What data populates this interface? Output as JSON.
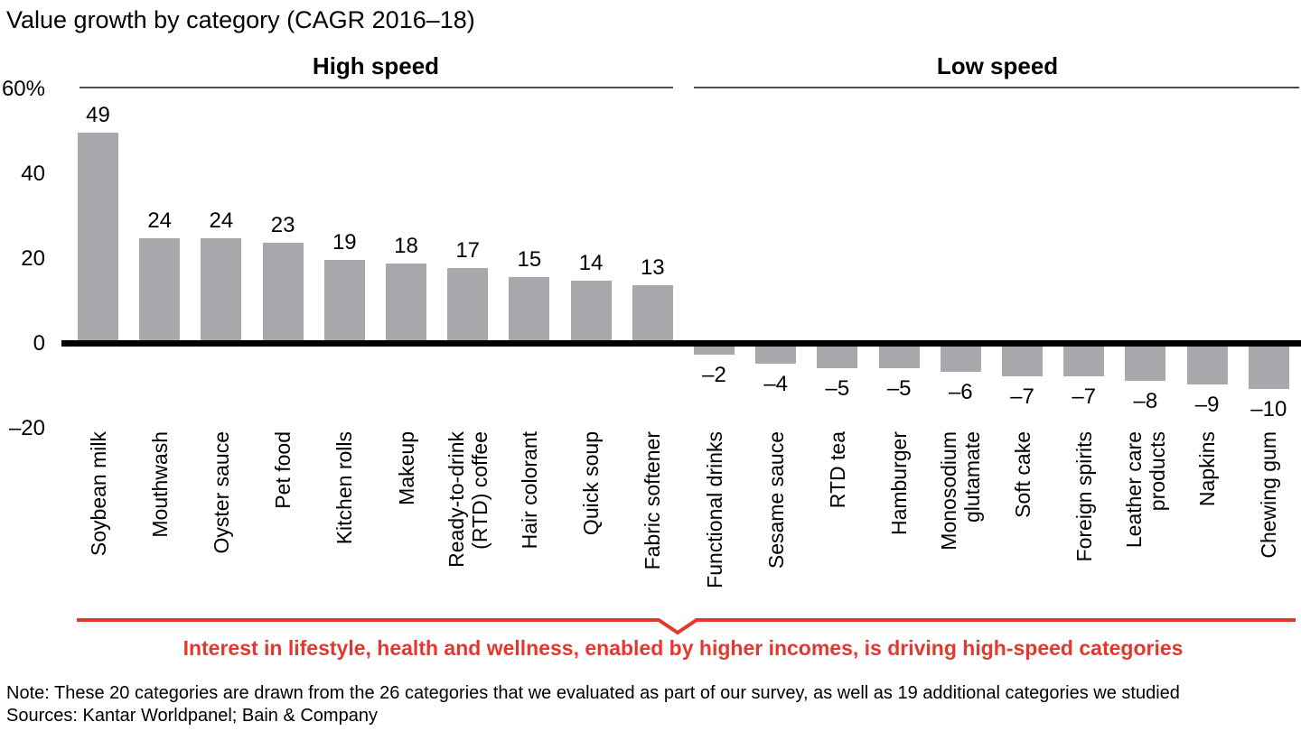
{
  "chart_data": {
    "type": "bar",
    "title": "Value growth by category (CAGR 2016–18)",
    "unit": "%",
    "ylim": [
      -20,
      60
    ],
    "grid": "off",
    "bar_color": "#a7a9ac",
    "yticks": [
      {
        "value": 60,
        "label": "60%"
      },
      {
        "value": 40,
        "label": "40"
      },
      {
        "value": 20,
        "label": "20"
      },
      {
        "value": 0,
        "label": "0"
      },
      {
        "value": -20,
        "label": "–20"
      }
    ],
    "groups": [
      {
        "label": "High speed",
        "bars": [
          {
            "category": "Soybean milk",
            "value": 49,
            "label": "49"
          },
          {
            "category": "Mouthwash",
            "value": 24,
            "label": "24"
          },
          {
            "category": "Oyster sauce",
            "value": 24,
            "label": "24"
          },
          {
            "category": "Pet food",
            "value": 23,
            "label": "23"
          },
          {
            "category": "Kitchen rolls",
            "value": 19,
            "label": "19"
          },
          {
            "category": "Makeup",
            "value": 18,
            "label": "18"
          },
          {
            "category": "Ready-to-drink\n(RTD) coffee",
            "value": 17,
            "label": "17"
          },
          {
            "category": "Hair colorant",
            "value": 15,
            "label": "15"
          },
          {
            "category": "Quick soup",
            "value": 14,
            "label": "14"
          },
          {
            "category": "Fabric softener",
            "value": 13,
            "label": "13"
          }
        ]
      },
      {
        "label": "Low speed",
        "bars": [
          {
            "category": "Functional drinks",
            "value": -2,
            "label": "–2"
          },
          {
            "category": "Sesame sauce",
            "value": -4,
            "label": "–4"
          },
          {
            "category": "RTD tea",
            "value": -5,
            "label": "–5"
          },
          {
            "category": "Hamburger",
            "value": -5,
            "label": "–5"
          },
          {
            "category": "Monosodium\nglutamate",
            "value": -6,
            "label": "–6"
          },
          {
            "category": "Soft cake",
            "value": -7,
            "label": "–7"
          },
          {
            "category": "Foreign spirits",
            "value": -7,
            "label": "–7"
          },
          {
            "category": "Leather care\nproducts",
            "value": -8,
            "label": "–8"
          },
          {
            "category": "Napkins",
            "value": -9,
            "label": "–9"
          },
          {
            "category": "Chewing gum",
            "value": -10,
            "label": "–10"
          }
        ]
      }
    ]
  },
  "annotation": {
    "text": "Interest in lifestyle, health and wellness, enabled by higher incomes, is driving high-speed categories",
    "color": "#e2382d"
  },
  "footnotes": {
    "note": "Note: These 20 categories are drawn from the 26 categories that we evaluated as part of our survey, as well as 19 additional categories we studied",
    "sources": "Sources: Kantar Worldpanel; Bain & Company"
  }
}
